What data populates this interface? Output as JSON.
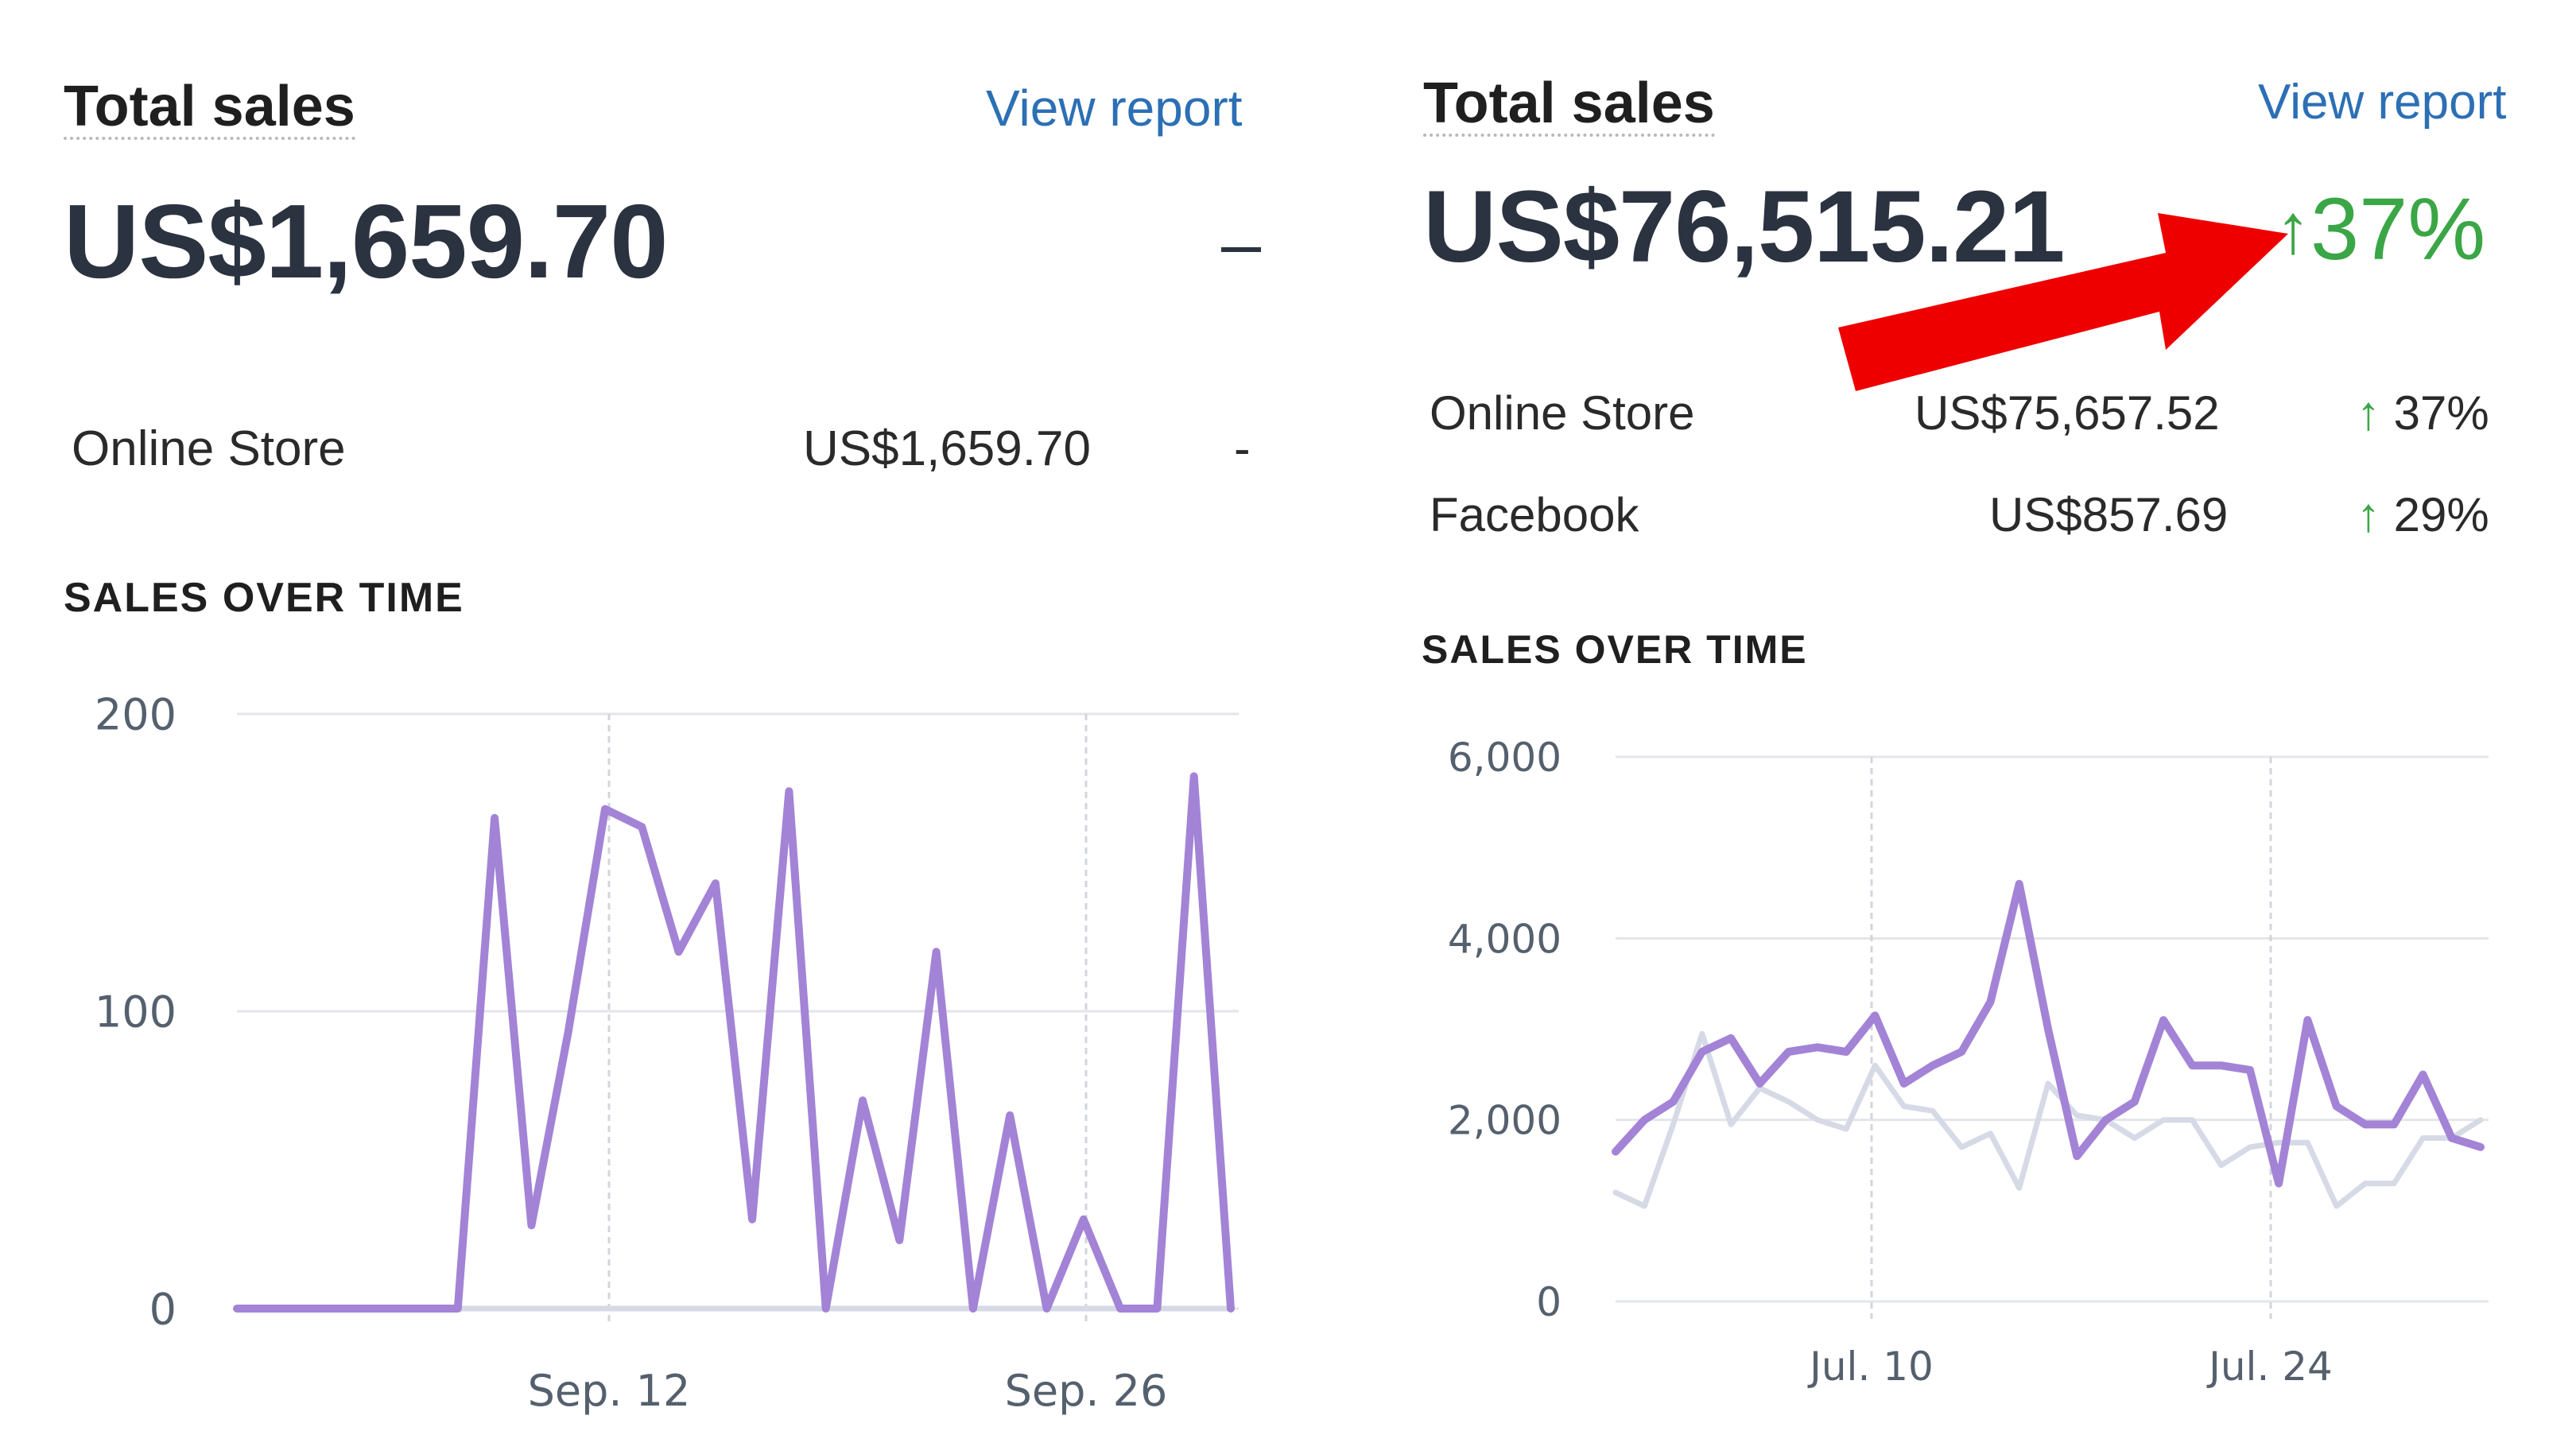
{
  "cards": [
    {
      "title": "Total sales",
      "view_report": "View report",
      "total": "US$1,659.70",
      "change": "–",
      "rows": [
        {
          "label": "Online Store",
          "value": "US$1,659.70",
          "change": "-"
        }
      ],
      "section_label": "SALES OVER TIME"
    },
    {
      "title": "Total sales",
      "view_report": "View report",
      "total": "US$76,515.21",
      "change_arrow": "↑",
      "change": "37%",
      "rows": [
        {
          "label": "Online Store",
          "value": "US$75,657.52",
          "change_arrow": "↑",
          "change": "37%"
        },
        {
          "label": "Facebook",
          "value": "US$857.69",
          "change_arrow": "↑",
          "change": "29%"
        }
      ],
      "section_label": "SALES OVER TIME"
    }
  ],
  "annotation": {
    "type": "red-arrow",
    "color": "#ee0000",
    "points_to": "37% change"
  },
  "colors": {
    "series_current": "#a383d6",
    "series_previous": "#d6dae6",
    "link": "#2c6fb5",
    "up": "#3aa646"
  },
  "chart_data": [
    {
      "type": "line",
      "x_ticks": [
        "Sep. 12",
        "Sep. 26"
      ],
      "y_ticks": [
        "0",
        "100",
        "200"
      ],
      "ylim": [
        0,
        200
      ],
      "grid": true,
      "series": [
        {
          "role": "current",
          "values": [
            0,
            0,
            0,
            0,
            0,
            0,
            0,
            165,
            28,
            93,
            168,
            162,
            120,
            143,
            30,
            174,
            0,
            70,
            23,
            120,
            0,
            65,
            0,
            30,
            0,
            0,
            179,
            0
          ]
        },
        {
          "role": "previous",
          "values": [
            0,
            0,
            0,
            0,
            0,
            0,
            0,
            0,
            0,
            0,
            0,
            0,
            0,
            0,
            0,
            0,
            0,
            0,
            0,
            0,
            0,
            0,
            0,
            0,
            0,
            0,
            0,
            0
          ]
        }
      ]
    },
    {
      "type": "line",
      "x_ticks": [
        "Jul. 10",
        "Jul. 24"
      ],
      "y_ticks": [
        "0",
        "2,000",
        "4,000",
        "6,000"
      ],
      "ylim": [
        0,
        6000
      ],
      "grid": true,
      "series": [
        {
          "role": "current",
          "values": [
            1650,
            2000,
            2200,
            2750,
            2900,
            2400,
            2750,
            2800,
            2750,
            3150,
            2400,
            2600,
            2750,
            3300,
            4600,
            3000,
            1600,
            2000,
            2200,
            3100,
            2600,
            2600,
            2550,
            1300,
            3100,
            2150,
            1950,
            1950,
            2500,
            1800,
            1700
          ]
        },
        {
          "role": "previous",
          "values": [
            1200,
            1050,
            1950,
            2950,
            1950,
            2350,
            2200,
            2000,
            1900,
            2600,
            2150,
            2100,
            1700,
            1850,
            1250,
            2400,
            2050,
            2000,
            1800,
            2000,
            2000,
            1500,
            1700,
            1750,
            1750,
            1050,
            1300,
            1300,
            1800,
            1800,
            2000
          ]
        }
      ]
    }
  ]
}
